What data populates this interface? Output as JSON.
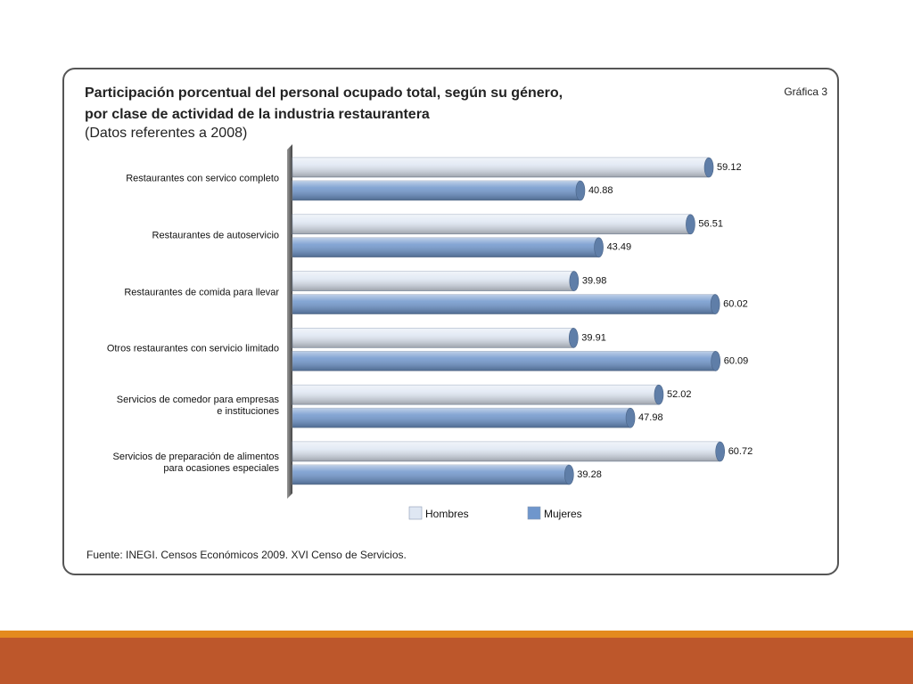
{
  "chart_data": {
    "type": "hbar",
    "title": "Participación porcentual del personal ocupado total, según su género,\npor clase de actividad de la industria restaurantera",
    "subtitle": "(Datos referentes a 2008)",
    "annotation": "Gráfica 3",
    "source": "Fuente: INEGI. Censos Económicos 2009. XVI Censo de Servicios.",
    "categories": [
      "Restaurantes con servico completo",
      "Restaurantes de autoservicio",
      "Restaurantes de comida para llevar",
      "Otros restaurantes con servicio limitado",
      "Servicios de comedor para empresas\ne instituciones",
      "Servicios de preparación de alimentos\npara ocasiones especiales"
    ],
    "series": [
      {
        "name": "Hombres",
        "color": "#dfe7f3",
        "values": [
          59.12,
          56.51,
          39.98,
          39.91,
          52.02,
          60.72
        ]
      },
      {
        "name": "Mujeres",
        "color": "#6f96cc",
        "values": [
          40.88,
          43.49,
          60.02,
          60.09,
          47.98,
          39.28
        ]
      }
    ],
    "legend": "bottom"
  }
}
